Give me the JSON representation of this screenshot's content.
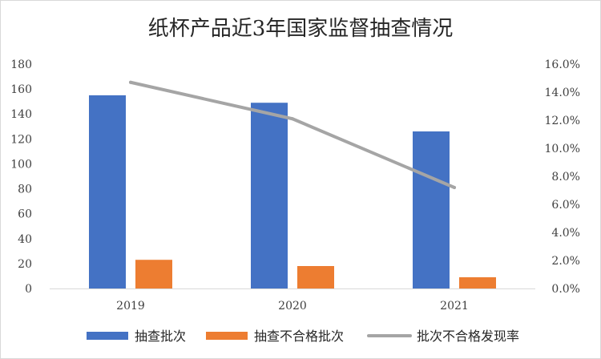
{
  "chart_data": {
    "type": "bar",
    "title": "纸杯产品近3年国家监督抽查情况",
    "categories": [
      "2019",
      "2020",
      "2021"
    ],
    "series": [
      {
        "name": "抽查批次",
        "kind": "bar",
        "axis": "left",
        "color": "#4472C4",
        "values": [
          155,
          149,
          126
        ]
      },
      {
        "name": "抽查不合格批次",
        "kind": "bar",
        "axis": "left",
        "color": "#ED7D31",
        "values": [
          23,
          18,
          9
        ]
      },
      {
        "name": "批次不合格发现率",
        "kind": "line",
        "axis": "right",
        "color": "#A5A5A5",
        "values": [
          0.147,
          0.121,
          0.072
        ]
      }
    ],
    "y_left": {
      "min": 0,
      "max": 180,
      "ticks": [
        "0",
        "20",
        "40",
        "60",
        "80",
        "100",
        "120",
        "140",
        "160",
        "180"
      ]
    },
    "y_right": {
      "min": 0,
      "max": 0.16,
      "ticks": [
        "0.0%",
        "2.0%",
        "4.0%",
        "6.0%",
        "8.0%",
        "10.0%",
        "12.0%",
        "14.0%",
        "16.0%"
      ]
    },
    "grid": false,
    "legend_position": "bottom"
  }
}
